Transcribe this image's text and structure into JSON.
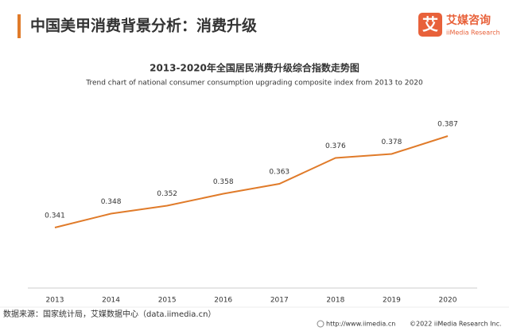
{
  "header": {
    "title": "中国美甲消费背景分析：消费升级",
    "logo": {
      "icon": "艾",
      "name": "艾媒咨询",
      "sub": "iiMedia Research"
    }
  },
  "chart_data": {
    "type": "line",
    "title": "2013-2020年全国居民消费升级综合指数走势图",
    "subtitle": "Trend chart of national consumer consumption upgrading composite index from 2013 to 2020",
    "categories": [
      "2013",
      "2014",
      "2015",
      "2016",
      "2017",
      "2018",
      "2019",
      "2020"
    ],
    "values": [
      0.341,
      0.348,
      0.352,
      0.358,
      0.363,
      0.376,
      0.378,
      0.387
    ],
    "color": "#e07b2a"
  },
  "footer": {
    "source": "数据来源：国家统计局，艾媒数据中心（data.iimedia.cn）",
    "url": "http://www.iimedia.cn",
    "copyright": "©2022  iiMedia Research  Inc."
  }
}
